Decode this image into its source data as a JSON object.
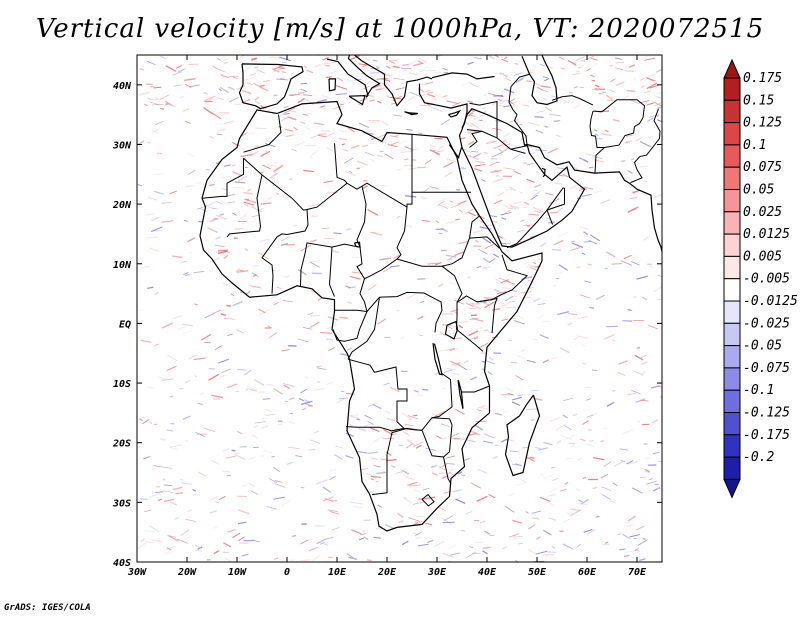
{
  "title": "Vertical velocity [m/s] at 1000hPa, VT: 2020072515",
  "credit": "GrADS: IGES/COLA",
  "map": {
    "lon_range": [
      -30,
      75
    ],
    "lat_range": [
      -40,
      45
    ],
    "lon_ticks": [
      {
        "value": -30,
        "label": "30W"
      },
      {
        "value": -20,
        "label": "20W"
      },
      {
        "value": -10,
        "label": "10W"
      },
      {
        "value": 0,
        "label": "0"
      },
      {
        "value": 10,
        "label": "10E"
      },
      {
        "value": 20,
        "label": "20E"
      },
      {
        "value": 30,
        "label": "30E"
      },
      {
        "value": 40,
        "label": "40E"
      },
      {
        "value": 50,
        "label": "50E"
      },
      {
        "value": 60,
        "label": "60E"
      },
      {
        "value": 70,
        "label": "70E"
      }
    ],
    "lat_ticks": [
      {
        "value": 40,
        "label": "40N"
      },
      {
        "value": 30,
        "label": "30N"
      },
      {
        "value": 20,
        "label": "20N"
      },
      {
        "value": 10,
        "label": "10N"
      },
      {
        "value": 0,
        "label": "EQ"
      },
      {
        "value": -10,
        "label": "10S"
      },
      {
        "value": -20,
        "label": "20S"
      },
      {
        "value": -30,
        "label": "30S"
      },
      {
        "value": -40,
        "label": "40S"
      }
    ]
  },
  "colorbar": {
    "levels": [
      {
        "label": "0.175",
        "color": "#b41e1e"
      },
      {
        "label": "0.15",
        "color": "#c83232"
      },
      {
        "label": "0.125",
        "color": "#dc4646"
      },
      {
        "label": "0.1",
        "color": "#e65a5a"
      },
      {
        "label": "0.075",
        "color": "#ee7878"
      },
      {
        "label": "0.05",
        "color": "#f49696"
      },
      {
        "label": "0.025",
        "color": "#f8b4b4"
      },
      {
        "label": "0.0125",
        "color": "#fcd2d2"
      },
      {
        "label": "0.005",
        "color": "#fde8e8"
      },
      {
        "label": "-0.005",
        "color": "#ffffff"
      },
      {
        "label": "-0.0125",
        "color": "#e6e6fa"
      },
      {
        "label": "-0.025",
        "color": "#c8c8f4"
      },
      {
        "label": "-0.05",
        "color": "#aaaaee"
      },
      {
        "label": "-0.075",
        "color": "#8c8ce6"
      },
      {
        "label": "-0.1",
        "color": "#6e6ede"
      },
      {
        "label": "-0.125",
        "color": "#5050d2"
      },
      {
        "label": "-0.175",
        "color": "#3232c0"
      },
      {
        "label": "-0.2",
        "color": "#1e1eaa"
      }
    ],
    "top_cap_color": "#a01414",
    "bottom_cap_color": "#14148c"
  }
}
